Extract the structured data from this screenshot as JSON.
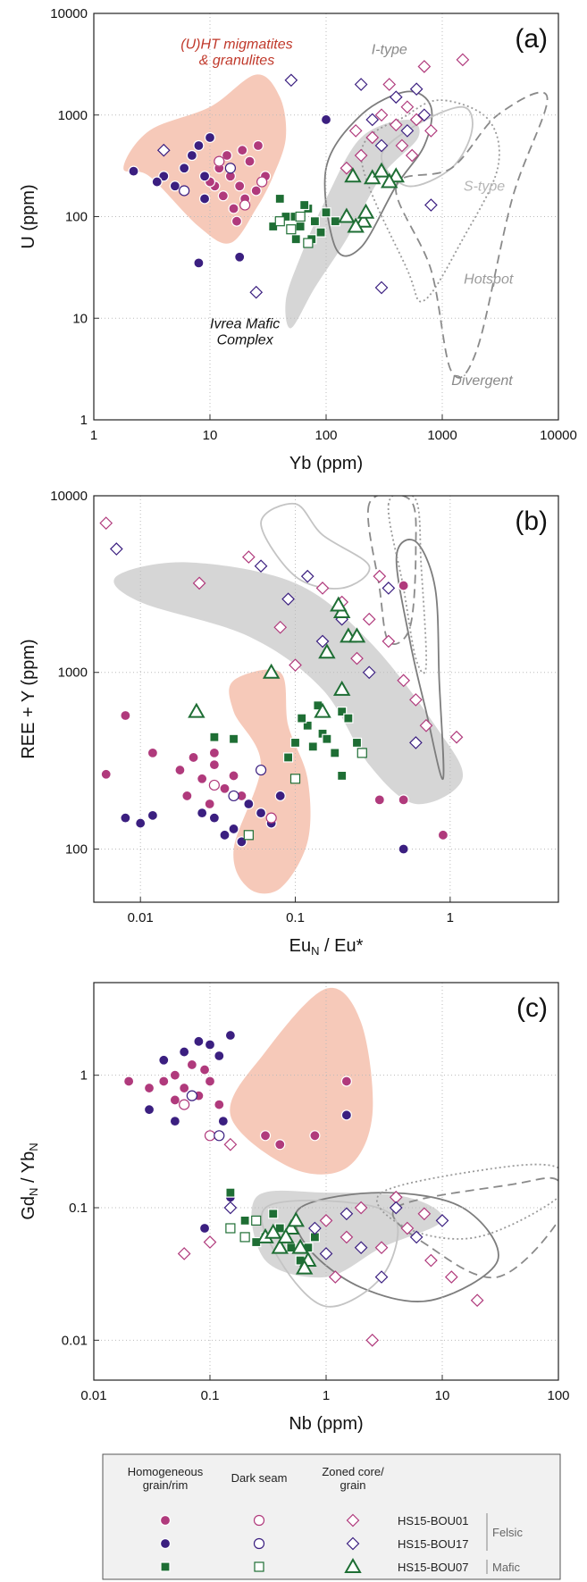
{
  "chart_data": [
    {
      "type": "scatter",
      "panel_label": "(a)",
      "xlabel": [
        "Yb (ppm)"
      ],
      "ylabel": [
        "U (ppm)"
      ],
      "xlim": [
        1,
        10000
      ],
      "ylim": [
        1,
        10000
      ],
      "xticks": [
        1,
        10,
        100,
        1000,
        10000
      ],
      "yticks": [
        1,
        10,
        100,
        1000,
        10000
      ],
      "log_x": true,
      "log_y": true,
      "grid": true,
      "annotations": [
        {
          "text": [
            "(U)HT migmatites",
            "& granulites"
          ],
          "color": "#c0392b"
        },
        {
          "text": [
            "I-type"
          ],
          "color": "#8a8a8a"
        },
        {
          "text": [
            "S-type"
          ],
          "color": "#b5b5b5"
        },
        {
          "text": [
            "Hotspot"
          ],
          "color": "#9a9a9a"
        },
        {
          "text": [
            "Divergent"
          ],
          "color": "#8a8a8a"
        },
        {
          "text": [
            "Ivrea Mafic",
            "Complex"
          ],
          "color": "#111111"
        }
      ],
      "series": [
        {
          "color": "#b03a7c",
          "marker": "circle",
          "filled": true,
          "x": [
            12,
            15,
            18,
            20,
            14,
            22,
            16,
            25,
            11,
            19,
            13,
            17,
            30,
            26,
            10
          ],
          "y": [
            300,
            250,
            200,
            150,
            400,
            350,
            120,
            180,
            200,
            450,
            160,
            90,
            250,
            500,
            220
          ]
        },
        {
          "color": "#3b1f80",
          "marker": "circle",
          "filled": true,
          "x": [
            8,
            6,
            9,
            5,
            7,
            10,
            4,
            12,
            2.2,
            3.5,
            8,
            18,
            100,
            9
          ],
          "y": [
            500,
            300,
            250,
            200,
            400,
            600,
            250,
            350,
            280,
            220,
            35,
            40,
            900,
            150
          ]
        },
        {
          "color": "#1e6e34",
          "marker": "square",
          "filled": true,
          "x": [
            40,
            50,
            60,
            70,
            80,
            90,
            55,
            45,
            65,
            100,
            75,
            120,
            35
          ],
          "y": [
            150,
            100,
            80,
            120,
            90,
            70,
            60,
            100,
            130,
            110,
            60,
            90,
            80
          ]
        },
        {
          "color": "#b03a7c",
          "marker": "circle",
          "filled": false,
          "x": [
            20,
            12,
            28
          ],
          "y": [
            130,
            350,
            220
          ]
        },
        {
          "color": "#3b1f80",
          "marker": "circle",
          "filled": false,
          "x": [
            15,
            6
          ],
          "y": [
            300,
            180
          ]
        },
        {
          "color": "#1e6e34",
          "marker": "square",
          "filled": false,
          "x": [
            50,
            70,
            40,
            60
          ],
          "y": [
            75,
            55,
            90,
            100
          ]
        },
        {
          "color": "#b03a7c",
          "marker": "diamond",
          "filled": false,
          "x": [
            300,
            400,
            250,
            500,
            200,
            350,
            600,
            800,
            150,
            450,
            700,
            1500,
            180,
            550
          ],
          "y": [
            1000,
            800,
            600,
            1200,
            400,
            2000,
            900,
            700,
            300,
            500,
            3000,
            3500,
            700,
            400
          ]
        },
        {
          "color": "#3b1f80",
          "marker": "diamond",
          "filled": false,
          "x": [
            400,
            300,
            600,
            250,
            500,
            200,
            800,
            300,
            25,
            4,
            50,
            700
          ],
          "y": [
            1500,
            500,
            1800,
            900,
            700,
            2000,
            130,
            20,
            18,
            450,
            2200,
            1000
          ]
        },
        {
          "color": "#1e6e34",
          "marker": "triangle",
          "filled": false,
          "x": [
            170,
            210,
            250,
            300,
            220,
            400,
            350,
            180,
            150
          ],
          "y": [
            250,
            90,
            240,
            280,
            110,
            250,
            220,
            80,
            100
          ]
        }
      ]
    },
    {
      "type": "scatter",
      "panel_label": "(b)",
      "xlabel": [
        "Eu",
        "N",
        " / Eu*"
      ],
      "ylabel": [
        "REE + Y (ppm)"
      ],
      "xlim": [
        0.005,
        5
      ],
      "ylim": [
        50,
        10000
      ],
      "xticks": [
        0.01,
        0.1,
        1
      ],
      "yticks": [
        100,
        1000,
        10000
      ],
      "log_x": true,
      "log_y": true,
      "grid": true,
      "series": [
        {
          "color": "#b03a7c",
          "marker": "circle",
          "filled": true,
          "x": [
            0.025,
            0.03,
            0.02,
            0.035,
            0.028,
            0.04,
            0.022,
            0.018,
            0.03,
            0.045,
            0.008,
            0.006,
            0.012,
            0.5,
            0.35,
            0.9,
            0.5
          ],
          "y": [
            250,
            300,
            200,
            220,
            180,
            260,
            330,
            280,
            350,
            200,
            570,
            265,
            350,
            190,
            190,
            120,
            3100
          ]
        },
        {
          "color": "#3b1f80",
          "marker": "circle",
          "filled": true,
          "x": [
            0.03,
            0.04,
            0.05,
            0.06,
            0.035,
            0.07,
            0.025,
            0.045,
            0.008,
            0.01,
            0.012,
            0.5,
            0.08
          ],
          "y": [
            150,
            130,
            180,
            160,
            120,
            140,
            160,
            110,
            150,
            140,
            155,
            100,
            200
          ]
        },
        {
          "color": "#1e6e34",
          "marker": "square",
          "filled": true,
          "x": [
            0.1,
            0.12,
            0.15,
            0.18,
            0.2,
            0.13,
            0.16,
            0.22,
            0.09,
            0.25,
            0.11,
            0.14,
            0.03,
            0.04,
            0.2
          ],
          "y": [
            400,
            500,
            450,
            350,
            600,
            380,
            420,
            550,
            330,
            400,
            550,
            650,
            430,
            420,
            260
          ]
        },
        {
          "color": "#b03a7c",
          "marker": "circle",
          "filled": false,
          "x": [
            0.03,
            0.07
          ],
          "y": [
            230,
            150
          ]
        },
        {
          "color": "#3b1f80",
          "marker": "circle",
          "filled": false,
          "x": [
            0.06,
            0.04
          ],
          "y": [
            280,
            200
          ]
        },
        {
          "color": "#1e6e34",
          "marker": "square",
          "filled": false,
          "x": [
            0.05,
            0.1,
            0.27
          ],
          "y": [
            120,
            250,
            350
          ]
        },
        {
          "color": "#b03a7c",
          "marker": "diamond",
          "filled": false,
          "x": [
            0.2,
            0.15,
            0.3,
            0.4,
            0.5,
            0.6,
            0.25,
            0.08,
            0.05,
            0.1,
            0.7,
            1.1,
            0.35,
            0.006,
            0.024
          ],
          "y": [
            2500,
            3000,
            2000,
            1500,
            900,
            700,
            1200,
            1800,
            4500,
            1100,
            500,
            430,
            3500,
            7000,
            3200
          ]
        },
        {
          "color": "#3b1f80",
          "marker": "diamond",
          "filled": false,
          "x": [
            0.12,
            0.2,
            0.09,
            0.3,
            0.15,
            0.4,
            0.6,
            0.007,
            0.06
          ],
          "y": [
            3500,
            2000,
            2600,
            1000,
            1500,
            3000,
            400,
            5000,
            4000
          ]
        },
        {
          "color": "#1e6e34",
          "marker": "triangle",
          "filled": false,
          "x": [
            0.2,
            0.22,
            0.25,
            0.16,
            0.2,
            0.15,
            0.07,
            0.023,
            0.19
          ],
          "y": [
            2200,
            1600,
            1600,
            1300,
            800,
            600,
            1000,
            600,
            2400
          ]
        }
      ]
    },
    {
      "type": "scatter",
      "panel_label": "(c)",
      "xlabel": [
        "Nb (ppm)"
      ],
      "ylabel": [
        "Gd",
        "N",
        " / Yb",
        "N"
      ],
      "xlim": [
        0.01,
        100
      ],
      "ylim": [
        0.005,
        5
      ],
      "xticks": [
        0.01,
        0.1,
        1,
        10,
        100
      ],
      "yticks": [
        0.01,
        0.1,
        1
      ],
      "log_x": true,
      "log_y": true,
      "grid": true,
      "series": [
        {
          "color": "#b03a7c",
          "marker": "circle",
          "filled": true,
          "x": [
            0.04,
            0.05,
            0.06,
            0.07,
            0.08,
            0.05,
            0.1,
            0.09,
            0.03,
            0.02,
            0.12,
            1.5,
            0.8,
            0.3,
            0.4
          ],
          "y": [
            0.9,
            1.0,
            0.8,
            1.2,
            0.7,
            0.65,
            0.9,
            1.1,
            0.8,
            0.9,
            0.6,
            0.9,
            0.35,
            0.35,
            0.3
          ]
        },
        {
          "color": "#3b1f80",
          "marker": "circle",
          "filled": true,
          "x": [
            0.04,
            0.06,
            0.1,
            0.15,
            0.03,
            0.05,
            0.12,
            0.08,
            1.5,
            0.15,
            0.09,
            0.13
          ],
          "y": [
            1.3,
            1.5,
            1.7,
            2.0,
            0.55,
            0.45,
            1.4,
            1.8,
            0.5,
            0.12,
            0.07,
            0.45
          ]
        },
        {
          "color": "#1e6e34",
          "marker": "square",
          "filled": true,
          "x": [
            0.15,
            0.2,
            0.3,
            0.4,
            0.5,
            0.6,
            0.35,
            0.7,
            0.25,
            0.8
          ],
          "y": [
            0.13,
            0.08,
            0.06,
            0.07,
            0.05,
            0.04,
            0.09,
            0.05,
            0.055,
            0.06
          ]
        },
        {
          "color": "#b03a7c",
          "marker": "circle",
          "filled": false,
          "x": [
            0.06,
            0.1
          ],
          "y": [
            0.6,
            0.35
          ]
        },
        {
          "color": "#3b1f80",
          "marker": "circle",
          "filled": false,
          "x": [
            0.12,
            0.07
          ],
          "y": [
            0.35,
            0.7
          ]
        },
        {
          "color": "#1e6e34",
          "marker": "square",
          "filled": false,
          "x": [
            0.15,
            0.25,
            0.2
          ],
          "y": [
            0.07,
            0.08,
            0.06
          ]
        },
        {
          "color": "#b03a7c",
          "marker": "diamond",
          "filled": false,
          "x": [
            1,
            1.5,
            2,
            3,
            5,
            8,
            1.2,
            2.5,
            12,
            4,
            20,
            0.06,
            0.1,
            0.15,
            7
          ],
          "y": [
            0.08,
            0.06,
            0.1,
            0.05,
            0.07,
            0.04,
            0.03,
            0.01,
            0.03,
            0.12,
            0.02,
            0.045,
            0.055,
            0.3,
            0.09
          ]
        },
        {
          "color": "#3b1f80",
          "marker": "diamond",
          "filled": false,
          "x": [
            1.5,
            2,
            3,
            4,
            6,
            10,
            0.8,
            1,
            0.15
          ],
          "y": [
            0.09,
            0.05,
            0.03,
            0.1,
            0.06,
            0.08,
            0.07,
            0.045,
            0.1
          ]
        },
        {
          "color": "#1e6e34",
          "marker": "triangle",
          "filled": false,
          "x": [
            0.3,
            0.4,
            0.5,
            0.6,
            0.7,
            0.45,
            0.55,
            0.35,
            0.65
          ],
          "y": [
            0.06,
            0.05,
            0.07,
            0.05,
            0.04,
            0.06,
            0.08,
            0.065,
            0.035
          ]
        }
      ]
    }
  ],
  "legend": {
    "columns": [
      [
        "Homogeneous",
        "grain/rim"
      ],
      [
        "Dark seam"
      ],
      [
        "Zoned core/",
        "grain"
      ]
    ],
    "rows": [
      "HS15-BOU01",
      "HS15-BOU17",
      "HS15-BOU07"
    ],
    "groups": [
      "Felsic",
      "Mafic"
    ]
  }
}
